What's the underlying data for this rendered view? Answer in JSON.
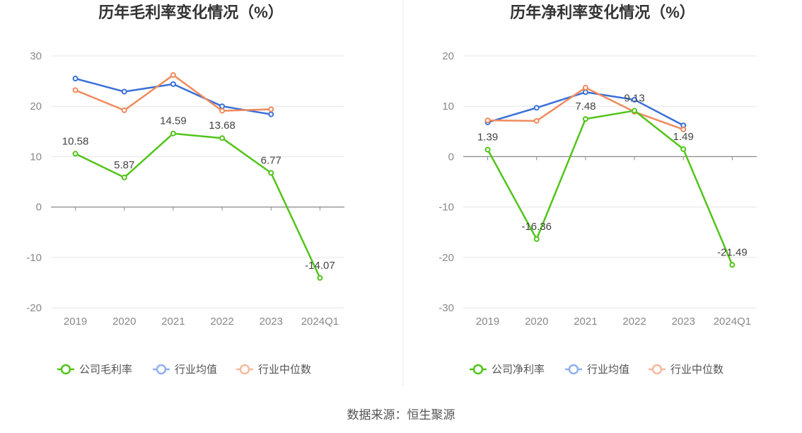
{
  "source": "数据来源：恒生聚源",
  "chart_data": [
    {
      "type": "line",
      "title": "历年毛利率变化情况（%）",
      "categories": [
        "2019",
        "2020",
        "2021",
        "2022",
        "2023",
        "2024Q1"
      ],
      "yticks": [
        30,
        20,
        10,
        0,
        -10,
        -20
      ],
      "ylim": [
        -20,
        30
      ],
      "series": [
        {
          "name": "公司毛利率",
          "color": "#52c41a",
          "values": [
            10.58,
            5.87,
            14.59,
            13.68,
            6.77,
            -14.07
          ],
          "labels": [
            "10.58",
            "5.87",
            "14.59",
            "13.68",
            "6.77",
            "-14.07"
          ]
        },
        {
          "name": "行业均值",
          "color": "#3a6fd8",
          "values": [
            25.5,
            22.9,
            24.4,
            20.0,
            18.4,
            null
          ]
        },
        {
          "name": "行业中位数",
          "color": "#f08a5d",
          "values": [
            23.2,
            19.2,
            26.2,
            19.1,
            19.4,
            null
          ]
        }
      ]
    },
    {
      "type": "line",
      "title": "历年净利率变化情况（%）",
      "categories": [
        "2019",
        "2020",
        "2021",
        "2022",
        "2023",
        "2024Q1"
      ],
      "yticks": [
        20,
        10,
        0,
        -10,
        -20,
        -30
      ],
      "ylim": [
        -30,
        20
      ],
      "series": [
        {
          "name": "公司净利率",
          "color": "#52c41a",
          "values": [
            1.39,
            -16.36,
            7.48,
            9.13,
            1.49,
            -21.49
          ],
          "labels": [
            "1.39",
            "-16.36",
            "7.48",
            "9.13",
            "1.49",
            "-21.49"
          ]
        },
        {
          "name": "行业均值",
          "color": "#3a6fd8",
          "values": [
            6.8,
            9.7,
            12.8,
            11.3,
            6.2,
            null
          ]
        },
        {
          "name": "行业中位数",
          "color": "#f08a5d",
          "values": [
            7.2,
            7.1,
            13.7,
            8.9,
            5.4,
            null
          ]
        }
      ]
    }
  ]
}
